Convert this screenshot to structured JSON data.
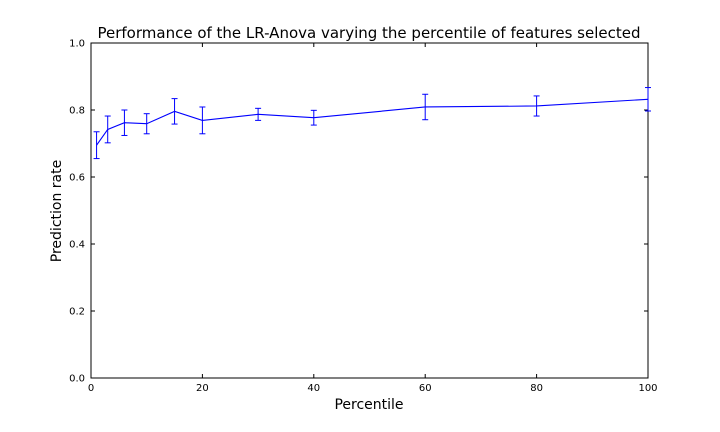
{
  "chart_data": {
    "type": "line",
    "title": "Performance of the LR-Anova varying the percentile of features selected",
    "xlabel": "Percentile",
    "ylabel": "Prediction rate",
    "xlim": [
      0,
      100
    ],
    "ylim": [
      0.0,
      1.0
    ],
    "xticks": [
      0,
      20,
      40,
      60,
      80,
      100
    ],
    "yticks": [
      0.0,
      0.2,
      0.4,
      0.6,
      0.8,
      1.0
    ],
    "xtick_labels": [
      "0",
      "20",
      "40",
      "60",
      "80",
      "100"
    ],
    "ytick_labels": [
      "0.0",
      "0.2",
      "0.4",
      "0.6",
      "0.8",
      "1.0"
    ],
    "grid": false,
    "colors": {
      "series": "#0000ff",
      "axis": "#000000",
      "background": "#ffffff"
    },
    "series": [
      {
        "x": [
          1,
          3,
          6,
          10,
          15,
          20,
          30,
          40,
          60,
          80,
          100
        ],
        "values": [
          0.695,
          0.742,
          0.762,
          0.759,
          0.796,
          0.769,
          0.787,
          0.777,
          0.809,
          0.812,
          0.832
        ],
        "errors": [
          0.04,
          0.04,
          0.038,
          0.03,
          0.038,
          0.04,
          0.018,
          0.022,
          0.038,
          0.03,
          0.035
        ]
      }
    ]
  }
}
